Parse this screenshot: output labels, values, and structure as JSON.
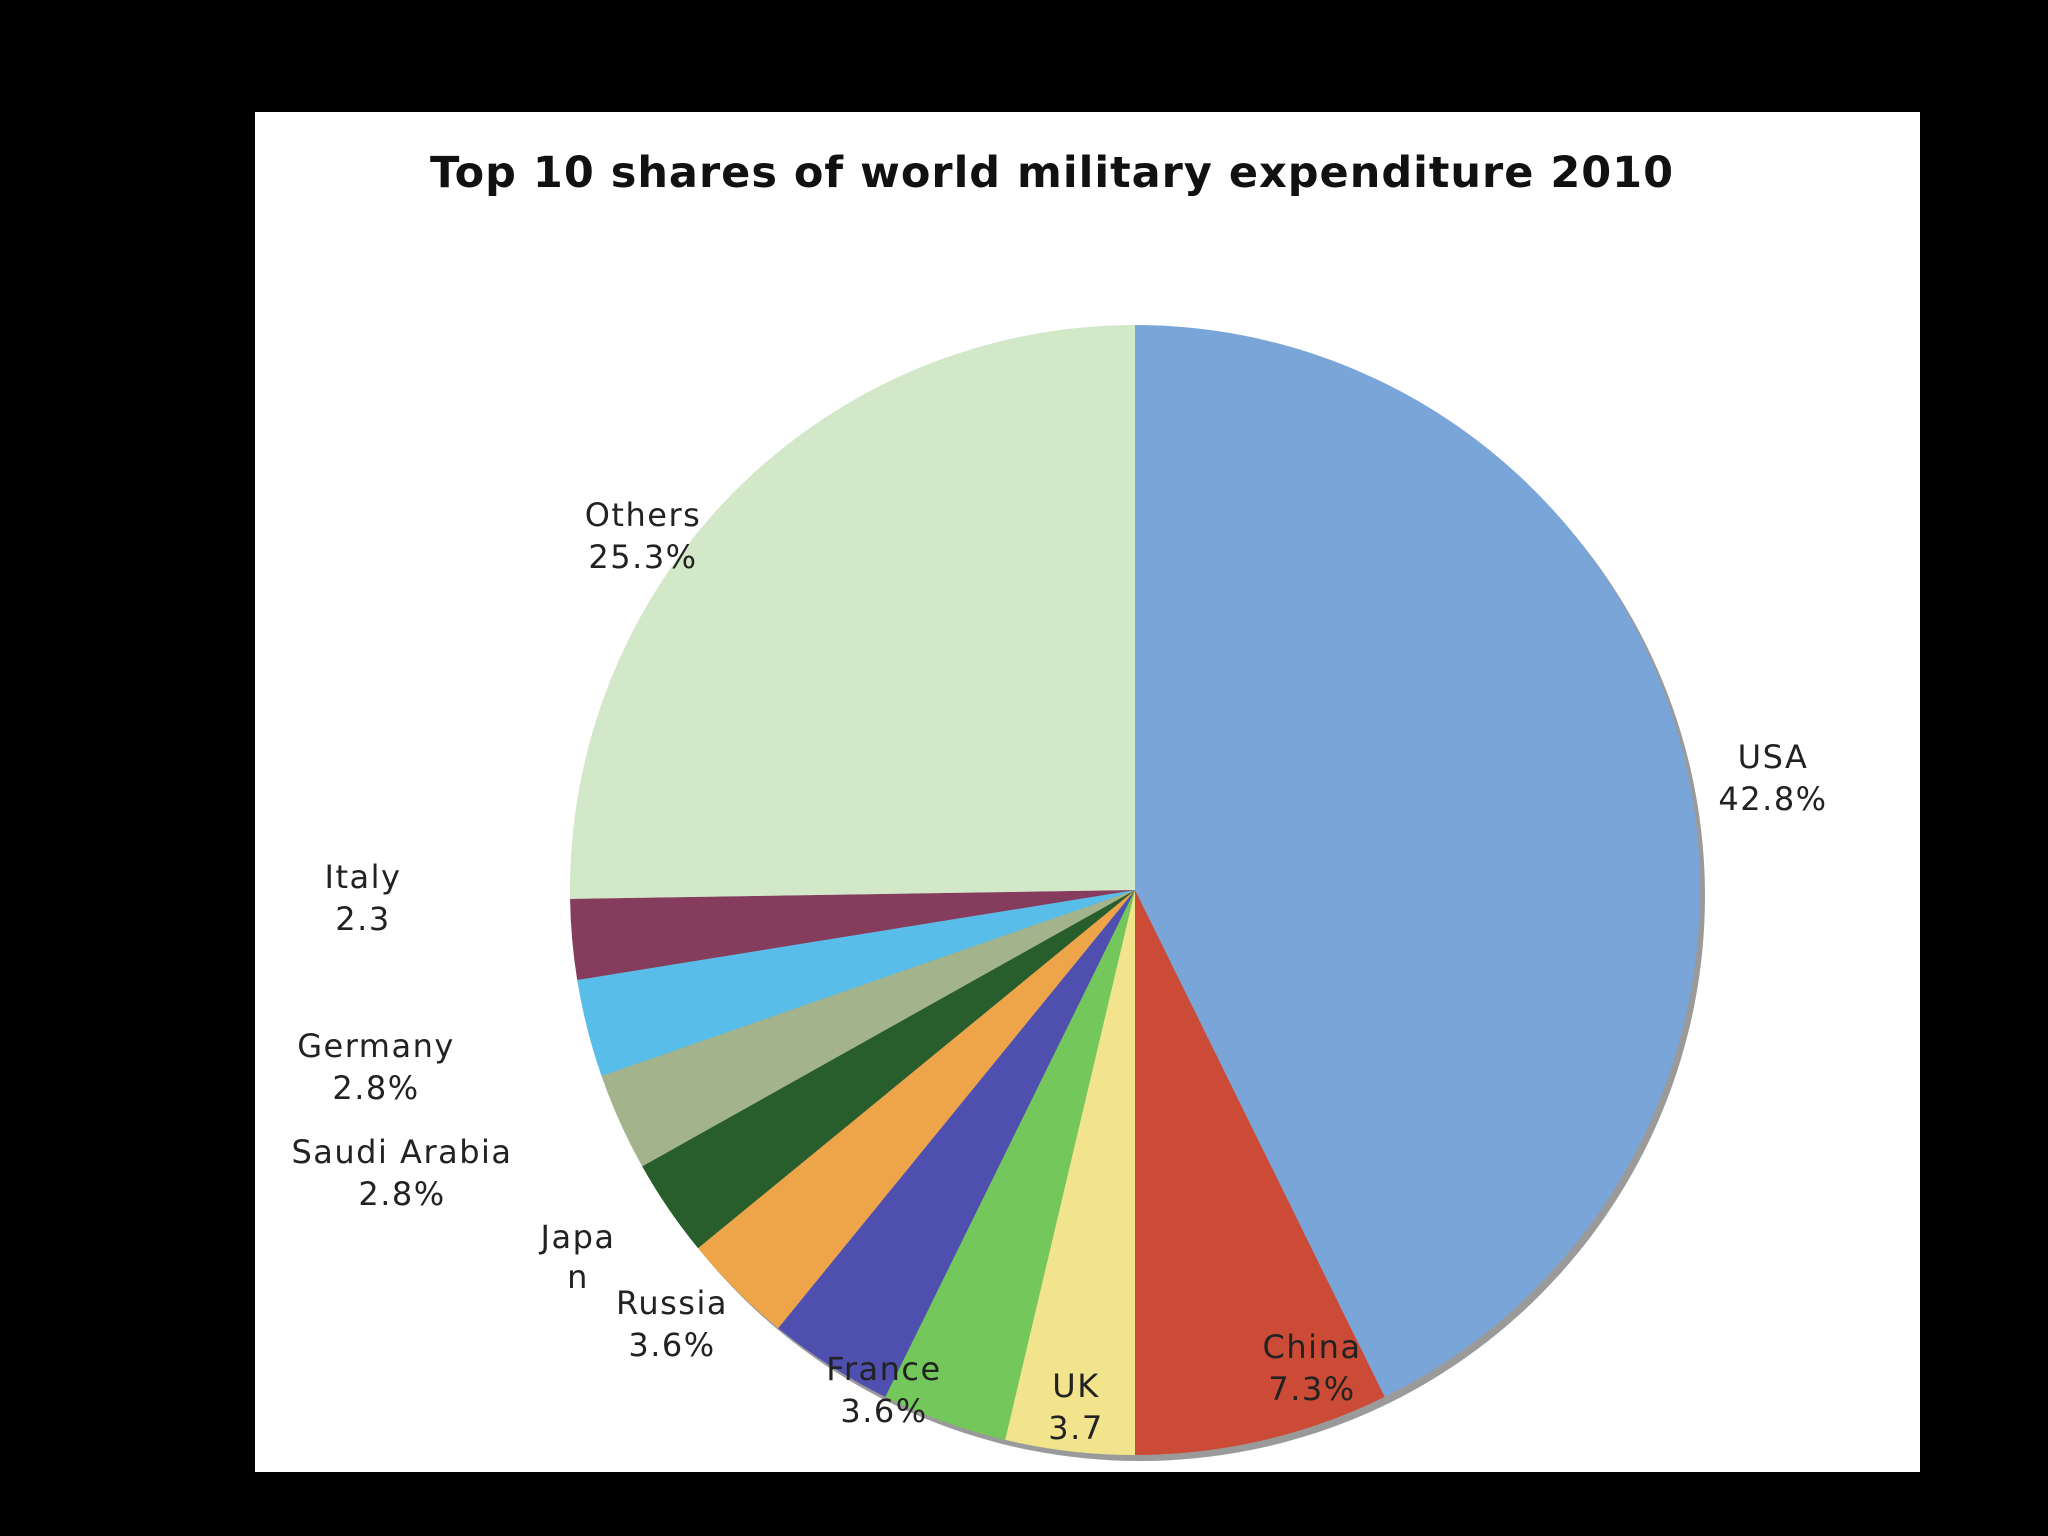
{
  "chart_data": {
    "type": "pie",
    "title": "Top 10 shares of world military expenditure 2010",
    "start_angle_deg": 0,
    "direction": "clockwise",
    "slices": [
      {
        "name": "USA",
        "value": 42.8,
        "label_value": "42.8%",
        "color": "#7aa5d8"
      },
      {
        "name": "China",
        "value": 7.3,
        "label_value": "7.3%",
        "color": "#cc4b36"
      },
      {
        "name": "UK",
        "value": 3.7,
        "label_value": "3.7",
        "color": "#f2e48c"
      },
      {
        "name": "France",
        "value": 3.6,
        "label_value": "3.6%",
        "color": "#74c75a"
      },
      {
        "name": "Russia",
        "value": 3.6,
        "label_value": "3.6%",
        "color": "#4f4fb0"
      },
      {
        "name": "Japan",
        "value": 3.2,
        "label_value": "",
        "color": "#eea54a"
      },
      {
        "name": "Saudi Arabia",
        "value": 2.8,
        "label_value": "2.8%",
        "color": "#285d2c"
      },
      {
        "name": "Germany",
        "value": 2.8,
        "label_value": "2.8%",
        "color": "#a3b48c"
      },
      {
        "name": "",
        "value": 2.8,
        "label_value": "",
        "color": "#58bde8"
      },
      {
        "name": "Italy",
        "value": 2.3,
        "label_value": "2.3",
        "color": "#863c5c"
      },
      {
        "name": "Others",
        "value": 25.3,
        "label_value": "25.3%",
        "color": "#d3e8c8"
      }
    ]
  }
}
